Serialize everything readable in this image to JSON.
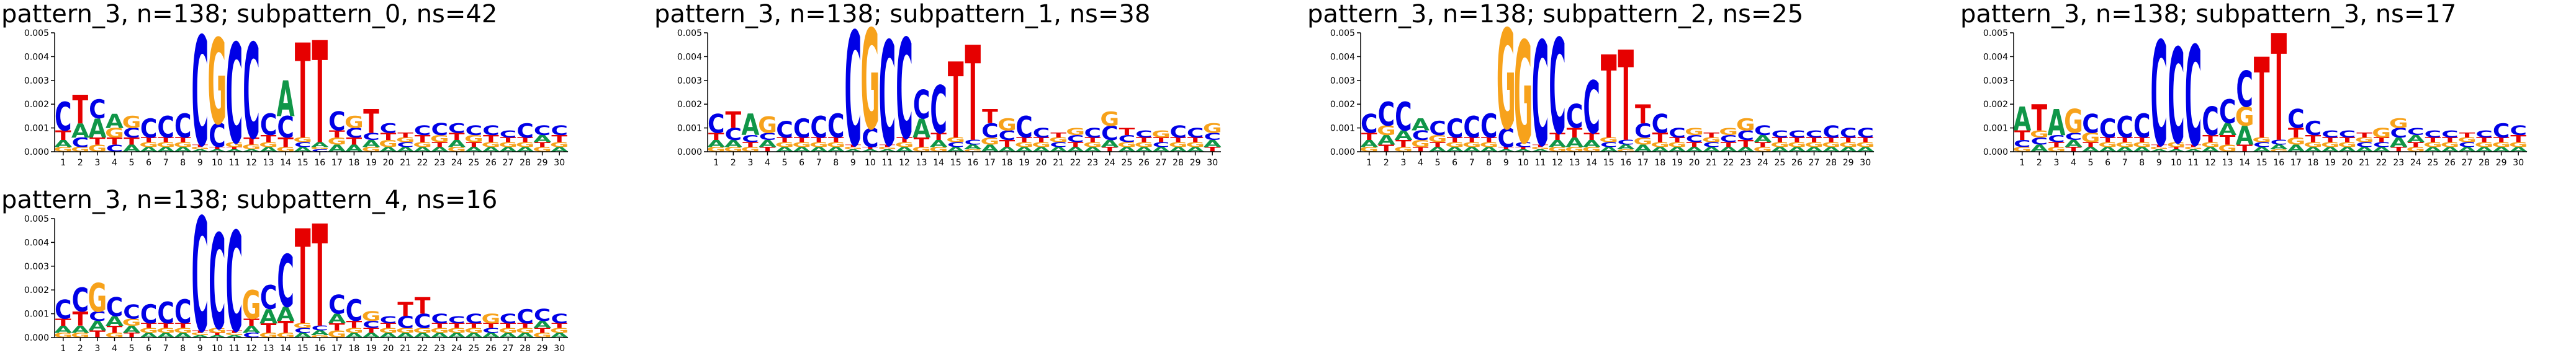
{
  "chart_data": [
    {
      "type": "logo",
      "title": "pattern_3, n=138; subpattern_0, ns=42",
      "categories": [
        1,
        2,
        3,
        4,
        5,
        6,
        7,
        8,
        9,
        10,
        11,
        12,
        13,
        14,
        15,
        16,
        17,
        18,
        19,
        20,
        21,
        22,
        23,
        24,
        25,
        26,
        27,
        28,
        29,
        30
      ],
      "ylim": [
        0,
        0.005
      ],
      "yticks": [
        {
          "value": 0,
          "label": "0.000"
        },
        {
          "value": 0.001,
          "label": "0.001"
        },
        {
          "value": 0.002,
          "label": "0.002"
        },
        {
          "value": 0.003,
          "label": "0.003"
        },
        {
          "value": 0.004,
          "label": "0.004"
        },
        {
          "value": 0.005,
          "label": "0.005"
        }
      ],
      "series": [
        {
          "name": "A",
          "color": "#109648",
          "values": [
            0.0003,
            0.0006,
            0.0008,
            0.0006,
            0.0003,
            0.0002,
            0.0002,
            0.0002,
            0.0001,
            0.0001,
            0.0001,
            0.0001,
            0.0002,
            0.0015,
            0.0002,
            0.0002,
            0.0003,
            0.0003,
            0.0003,
            0.0002,
            0.0002,
            0.0002,
            0.0002,
            0.0003,
            0.0002,
            0.0002,
            0.0002,
            0.0002,
            0.0003,
            0.0002
          ]
        },
        {
          "name": "C",
          "color": "#0000e6",
          "values": [
            0.0012,
            0.0004,
            0.0008,
            0.0003,
            0.0004,
            0.0008,
            0.0009,
            0.001,
            0.0046,
            0.001,
            0.0042,
            0.004,
            0.0009,
            0.0009,
            0.0002,
            0.0001,
            0.0008,
            0.0004,
            0.0003,
            0.0004,
            0.0002,
            0.0004,
            0.0005,
            0.0004,
            0.0004,
            0.0004,
            0.0003,
            0.0006,
            0.0004,
            0.0004
          ]
        },
        {
          "name": "G",
          "color": "#f7a21b",
          "values": [
            0.0002,
            0.0002,
            0.0003,
            0.0004,
            0.0005,
            0.0002,
            0.0002,
            0.0002,
            0.0001,
            0.0036,
            0.0002,
            0.0002,
            0.0002,
            0.0002,
            0.0002,
            0.0001,
            0.0003,
            0.0005,
            0.0002,
            0.0003,
            0.0002,
            0.0002,
            0.0003,
            0.0002,
            0.0003,
            0.0002,
            0.0002,
            0.0002,
            0.0002,
            0.0002
          ]
        },
        {
          "name": "T",
          "color": "#e60000",
          "values": [
            0.0004,
            0.0012,
            0.0003,
            0.0003,
            0.0003,
            0.0002,
            0.0002,
            0.0002,
            0.0001,
            0.0001,
            0.0001,
            0.0003,
            0.0003,
            0.0004,
            0.004,
            0.0043,
            0.0003,
            0.0003,
            0.001,
            0.0003,
            0.0002,
            0.0003,
            0.0002,
            0.0003,
            0.0002,
            0.0003,
            0.0002,
            0.0002,
            0.0002,
            0.0003
          ]
        }
      ]
    },
    {
      "type": "logo",
      "title": "pattern_3, n=138; subpattern_1, ns=38",
      "categories": [
        1,
        2,
        3,
        4,
        5,
        6,
        7,
        8,
        9,
        10,
        11,
        12,
        13,
        14,
        15,
        16,
        17,
        18,
        19,
        20,
        21,
        22,
        23,
        24,
        25,
        26,
        27,
        28,
        29,
        30
      ],
      "ylim": [
        0,
        0.005
      ],
      "yticks": [
        {
          "value": 0,
          "label": "0.000"
        },
        {
          "value": 0.001,
          "label": "0.001"
        },
        {
          "value": 0.002,
          "label": "0.002"
        },
        {
          "value": 0.003,
          "label": "0.003"
        },
        {
          "value": 0.004,
          "label": "0.004"
        },
        {
          "value": 0.005,
          "label": "0.005"
        }
      ],
      "series": [
        {
          "name": "A",
          "color": "#109648",
          "values": [
            0.0003,
            0.0003,
            0.0009,
            0.0003,
            0.0002,
            0.0002,
            0.0002,
            0.0002,
            0.0001,
            0.0001,
            0.0001,
            0.0002,
            0.0008,
            0.0003,
            0.0002,
            0.0002,
            0.0003,
            0.0002,
            0.0002,
            0.0002,
            0.0002,
            0.0002,
            0.0002,
            0.0003,
            0.0002,
            0.0002,
            0.0002,
            0.0002,
            0.0002,
            0.0003
          ]
        },
        {
          "name": "C",
          "color": "#0000e6",
          "values": [
            0.0008,
            0.0005,
            0.0003,
            0.0003,
            0.0007,
            0.0008,
            0.0009,
            0.001,
            0.0048,
            0.0008,
            0.0044,
            0.0042,
            0.0012,
            0.002,
            0.0002,
            0.0002,
            0.0006,
            0.0004,
            0.0009,
            0.0004,
            0.0002,
            0.0003,
            0.0004,
            0.0006,
            0.0003,
            0.0003,
            0.0002,
            0.0005,
            0.0004,
            0.0003
          ]
        },
        {
          "name": "G",
          "color": "#f7a21b",
          "values": [
            0.0002,
            0.0002,
            0.0002,
            0.0007,
            0.0002,
            0.0002,
            0.0002,
            0.0002,
            0.0001,
            0.0042,
            0.0001,
            0.0002,
            0.0002,
            0.0002,
            0.0002,
            0.0001,
            0.0003,
            0.0005,
            0.0002,
            0.0002,
            0.0002,
            0.0003,
            0.0002,
            0.0006,
            0.0002,
            0.0002,
            0.0003,
            0.0002,
            0.0002,
            0.0004
          ]
        },
        {
          "name": "T",
          "color": "#e60000",
          "values": [
            0.0003,
            0.0007,
            0.0002,
            0.0002,
            0.0002,
            0.0002,
            0.0002,
            0.0002,
            0.0001,
            0.0001,
            0.0001,
            0.0002,
            0.0004,
            0.0003,
            0.0032,
            0.004,
            0.0006,
            0.0003,
            0.0002,
            0.0002,
            0.0002,
            0.0002,
            0.0002,
            0.0002,
            0.0003,
            0.0002,
            0.0002,
            0.0002,
            0.0002,
            0.0002
          ]
        }
      ]
    },
    {
      "type": "logo",
      "title": "pattern_3, n=138; subpattern_2, ns=25",
      "categories": [
        1,
        2,
        3,
        4,
        5,
        6,
        7,
        8,
        9,
        10,
        11,
        12,
        13,
        14,
        15,
        16,
        17,
        18,
        19,
        20,
        21,
        22,
        23,
        24,
        25,
        26,
        27,
        28,
        29,
        30
      ],
      "ylim": [
        0,
        0.005
      ],
      "yticks": [
        {
          "value": 0,
          "label": "0.000"
        },
        {
          "value": 0.001,
          "label": "0.001"
        },
        {
          "value": 0.002,
          "label": "0.002"
        },
        {
          "value": 0.003,
          "label": "0.003"
        },
        {
          "value": 0.004,
          "label": "0.004"
        },
        {
          "value": 0.005,
          "label": "0.005"
        }
      ],
      "series": [
        {
          "name": "A",
          "color": "#109648",
          "values": [
            0.0003,
            0.0004,
            0.0004,
            0.0005,
            0.0002,
            0.0002,
            0.0002,
            0.0002,
            0.0001,
            0.0001,
            0.0001,
            0.0003,
            0.0004,
            0.0003,
            0.0002,
            0.0002,
            0.0003,
            0.0002,
            0.0002,
            0.0002,
            0.0002,
            0.0002,
            0.0002,
            0.0003,
            0.0002,
            0.0002,
            0.0002,
            0.0002,
            0.0002,
            0.0002
          ]
        },
        {
          "name": "C",
          "color": "#0000e6",
          "values": [
            0.0008,
            0.001,
            0.0012,
            0.0004,
            0.0006,
            0.0008,
            0.0009,
            0.001,
            0.0008,
            0.0002,
            0.0044,
            0.004,
            0.001,
            0.0022,
            0.0002,
            0.0002,
            0.0006,
            0.0008,
            0.0004,
            0.0003,
            0.0002,
            0.0003,
            0.0004,
            0.0004,
            0.0003,
            0.0003,
            0.0003,
            0.0005,
            0.0004,
            0.0004
          ]
        },
        {
          "name": "G",
          "color": "#f7a21b",
          "values": [
            0.0002,
            0.0004,
            0.0002,
            0.0003,
            0.0003,
            0.0002,
            0.0002,
            0.0002,
            0.0042,
            0.0043,
            0.0001,
            0.0002,
            0.0002,
            0.0002,
            0.0002,
            0.0001,
            0.0003,
            0.0002,
            0.0002,
            0.0003,
            0.0002,
            0.0003,
            0.0005,
            0.0002,
            0.0002,
            0.0002,
            0.0002,
            0.0002,
            0.0002,
            0.0002
          ]
        },
        {
          "name": "T",
          "color": "#e60000",
          "values": [
            0.0003,
            0.0003,
            0.0003,
            0.0002,
            0.0002,
            0.0002,
            0.0002,
            0.0002,
            0.0001,
            0.0001,
            0.0001,
            0.0003,
            0.0004,
            0.0003,
            0.0035,
            0.0038,
            0.0008,
            0.0004,
            0.0002,
            0.0002,
            0.0002,
            0.0002,
            0.0003,
            0.0002,
            0.0002,
            0.0002,
            0.0002,
            0.0002,
            0.0002,
            0.0002
          ]
        }
      ]
    },
    {
      "type": "logo",
      "title": "pattern_3, n=138; subpattern_3, ns=17",
      "categories": [
        1,
        2,
        3,
        4,
        5,
        6,
        7,
        8,
        9,
        10,
        11,
        12,
        13,
        14,
        15,
        16,
        17,
        18,
        19,
        20,
        21,
        22,
        23,
        24,
        25,
        26,
        27,
        28,
        29,
        30
      ],
      "ylim": [
        0,
        0.005
      ],
      "yticks": [
        {
          "value": 0,
          "label": "0.000"
        },
        {
          "value": 0.001,
          "label": "0.001"
        },
        {
          "value": 0.002,
          "label": "0.002"
        },
        {
          "value": 0.003,
          "label": "0.003"
        },
        {
          "value": 0.004,
          "label": "0.004"
        },
        {
          "value": 0.005,
          "label": "0.005"
        }
      ],
      "series": [
        {
          "name": "A",
          "color": "#109648",
          "values": [
            0.001,
            0.0003,
            0.0011,
            0.0003,
            0.0002,
            0.0002,
            0.0002,
            0.0002,
            0.0001,
            0.0001,
            0.0001,
            0.0002,
            0.0005,
            0.0008,
            0.0002,
            0.0002,
            0.0003,
            0.0002,
            0.0002,
            0.0002,
            0.0002,
            0.0002,
            0.0004,
            0.0003,
            0.0002,
            0.0002,
            0.0002,
            0.0002,
            0.0002,
            0.0002
          ]
        },
        {
          "name": "C",
          "color": "#0000e6",
          "values": [
            0.0003,
            0.0003,
            0.0003,
            0.0003,
            0.0008,
            0.0008,
            0.0009,
            0.001,
            0.0044,
            0.004,
            0.0042,
            0.0012,
            0.001,
            0.0015,
            0.0002,
            0.0002,
            0.0008,
            0.0006,
            0.0003,
            0.0003,
            0.0002,
            0.0002,
            0.0004,
            0.0003,
            0.0003,
            0.0003,
            0.0002,
            0.0003,
            0.0006,
            0.0004
          ]
        },
        {
          "name": "G",
          "color": "#f7a21b",
          "values": [
            0.0002,
            0.0003,
            0.0002,
            0.001,
            0.0004,
            0.0002,
            0.0002,
            0.0002,
            0.0001,
            0.0002,
            0.0001,
            0.0002,
            0.0003,
            0.0008,
            0.0002,
            0.0001,
            0.0003,
            0.0002,
            0.0002,
            0.0002,
            0.0002,
            0.0004,
            0.0004,
            0.0002,
            0.0002,
            0.0002,
            0.0002,
            0.0002,
            0.0002,
            0.0002
          ]
        },
        {
          "name": "T",
          "color": "#e60000",
          "values": [
            0.0004,
            0.0011,
            0.0002,
            0.0002,
            0.0002,
            0.0002,
            0.0002,
            0.0002,
            0.0001,
            0.0001,
            0.0001,
            0.0003,
            0.0004,
            0.0003,
            0.0034,
            0.0045,
            0.0004,
            0.0003,
            0.0002,
            0.0002,
            0.0002,
            0.0002,
            0.0002,
            0.0002,
            0.0002,
            0.0002,
            0.0002,
            0.0002,
            0.0002,
            0.0003
          ]
        }
      ]
    },
    {
      "type": "logo",
      "title": "pattern_3, n=138; subpattern_4, ns=16",
      "categories": [
        1,
        2,
        3,
        4,
        5,
        6,
        7,
        8,
        9,
        10,
        11,
        12,
        13,
        14,
        15,
        16,
        17,
        18,
        19,
        20,
        21,
        22,
        23,
        24,
        25,
        26,
        27,
        28,
        29,
        30
      ],
      "ylim": [
        0,
        0.005
      ],
      "yticks": [
        {
          "value": 0,
          "label": "0.000"
        },
        {
          "value": 0.001,
          "label": "0.001"
        },
        {
          "value": 0.002,
          "label": "0.002"
        },
        {
          "value": 0.003,
          "label": "0.003"
        },
        {
          "value": 0.004,
          "label": "0.004"
        },
        {
          "value": 0.005,
          "label": "0.005"
        }
      ],
      "series": [
        {
          "name": "A",
          "color": "#109648",
          "values": [
            0.0003,
            0.0003,
            0.0004,
            0.0004,
            0.0003,
            0.0002,
            0.0002,
            0.0002,
            0.0001,
            0.0001,
            0.0001,
            0.0003,
            0.0006,
            0.0006,
            0.0002,
            0.0002,
            0.0004,
            0.0002,
            0.0002,
            0.0002,
            0.0002,
            0.0002,
            0.0002,
            0.0002,
            0.0002,
            0.0002,
            0.0002,
            0.0002,
            0.0003,
            0.0002
          ]
        },
        {
          "name": "C",
          "color": "#0000e6",
          "values": [
            0.0008,
            0.001,
            0.0004,
            0.0008,
            0.0006,
            0.0008,
            0.0009,
            0.001,
            0.0048,
            0.004,
            0.0042,
            0.0002,
            0.001,
            0.0022,
            0.0002,
            0.0002,
            0.0008,
            0.0009,
            0.0003,
            0.0003,
            0.0005,
            0.0006,
            0.0004,
            0.0003,
            0.0004,
            0.0002,
            0.0004,
            0.0006,
            0.0005,
            0.0004
          ]
        },
        {
          "name": "G",
          "color": "#f7a21b",
          "values": [
            0.0002,
            0.0002,
            0.0012,
            0.0002,
            0.0003,
            0.0002,
            0.0002,
            0.0002,
            0.0001,
            0.0002,
            0.0001,
            0.0012,
            0.0002,
            0.0002,
            0.0002,
            0.0001,
            0.0003,
            0.0002,
            0.0004,
            0.0002,
            0.0002,
            0.0002,
            0.0002,
            0.0002,
            0.0002,
            0.0004,
            0.0002,
            0.0002,
            0.0002,
            0.0002
          ]
        },
        {
          "name": "T",
          "color": "#e60000",
          "values": [
            0.0003,
            0.0006,
            0.0003,
            0.0003,
            0.0002,
            0.0002,
            0.0002,
            0.0002,
            0.0001,
            0.0001,
            0.0001,
            0.0003,
            0.0004,
            0.0005,
            0.004,
            0.0043,
            0.0003,
            0.0003,
            0.0002,
            0.0002,
            0.0006,
            0.0007,
            0.0002,
            0.0002,
            0.0002,
            0.0002,
            0.0002,
            0.0002,
            0.0002,
            0.0002
          ]
        }
      ]
    }
  ]
}
